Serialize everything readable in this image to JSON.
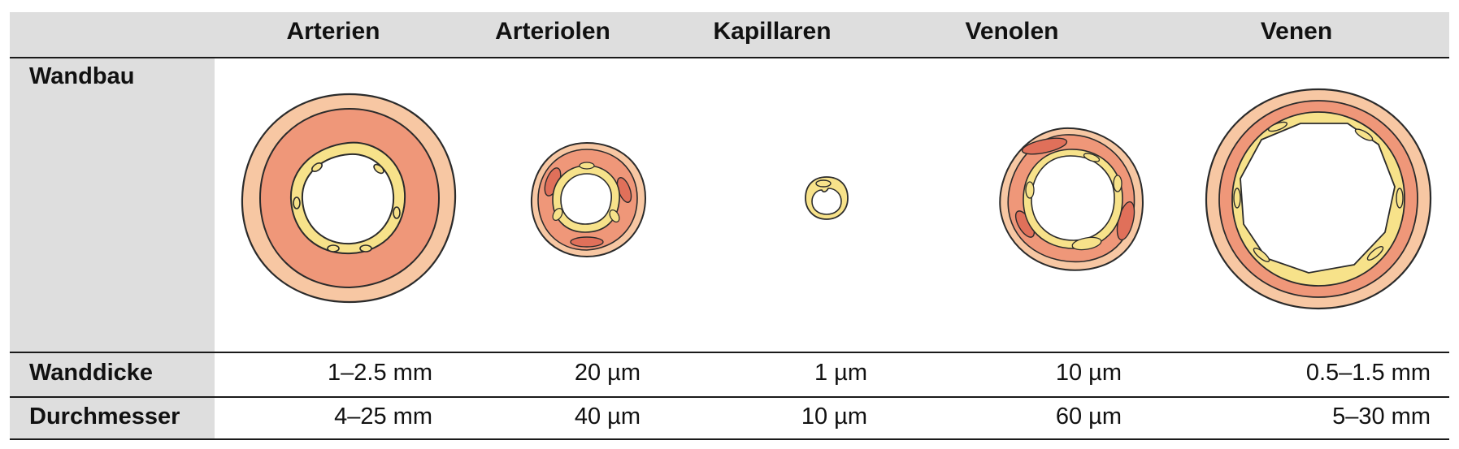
{
  "table": {
    "columns": [
      "Arterien",
      "Arteriolen",
      "Kapillaren",
      "Venolen",
      "Venen"
    ],
    "rows": [
      {
        "label": "Wandbau"
      },
      {
        "label": "Wanddicke",
        "values": [
          "1–2.5 mm",
          "20 µm",
          "1 µm",
          "10 µm",
          "0.5–1.5 mm"
        ]
      },
      {
        "label": "Durchmesser",
        "values": [
          "4–25 mm",
          "40 µm",
          "10 µm",
          "60 µm",
          "5–30 mm"
        ]
      }
    ]
  },
  "colors": {
    "header_bg": "#dedede",
    "adventitia": "#f7c7a3",
    "media": "#ef9779",
    "media_dark": "#e0705a",
    "intima": "#f7e28a",
    "outline": "#2b2b2b"
  }
}
